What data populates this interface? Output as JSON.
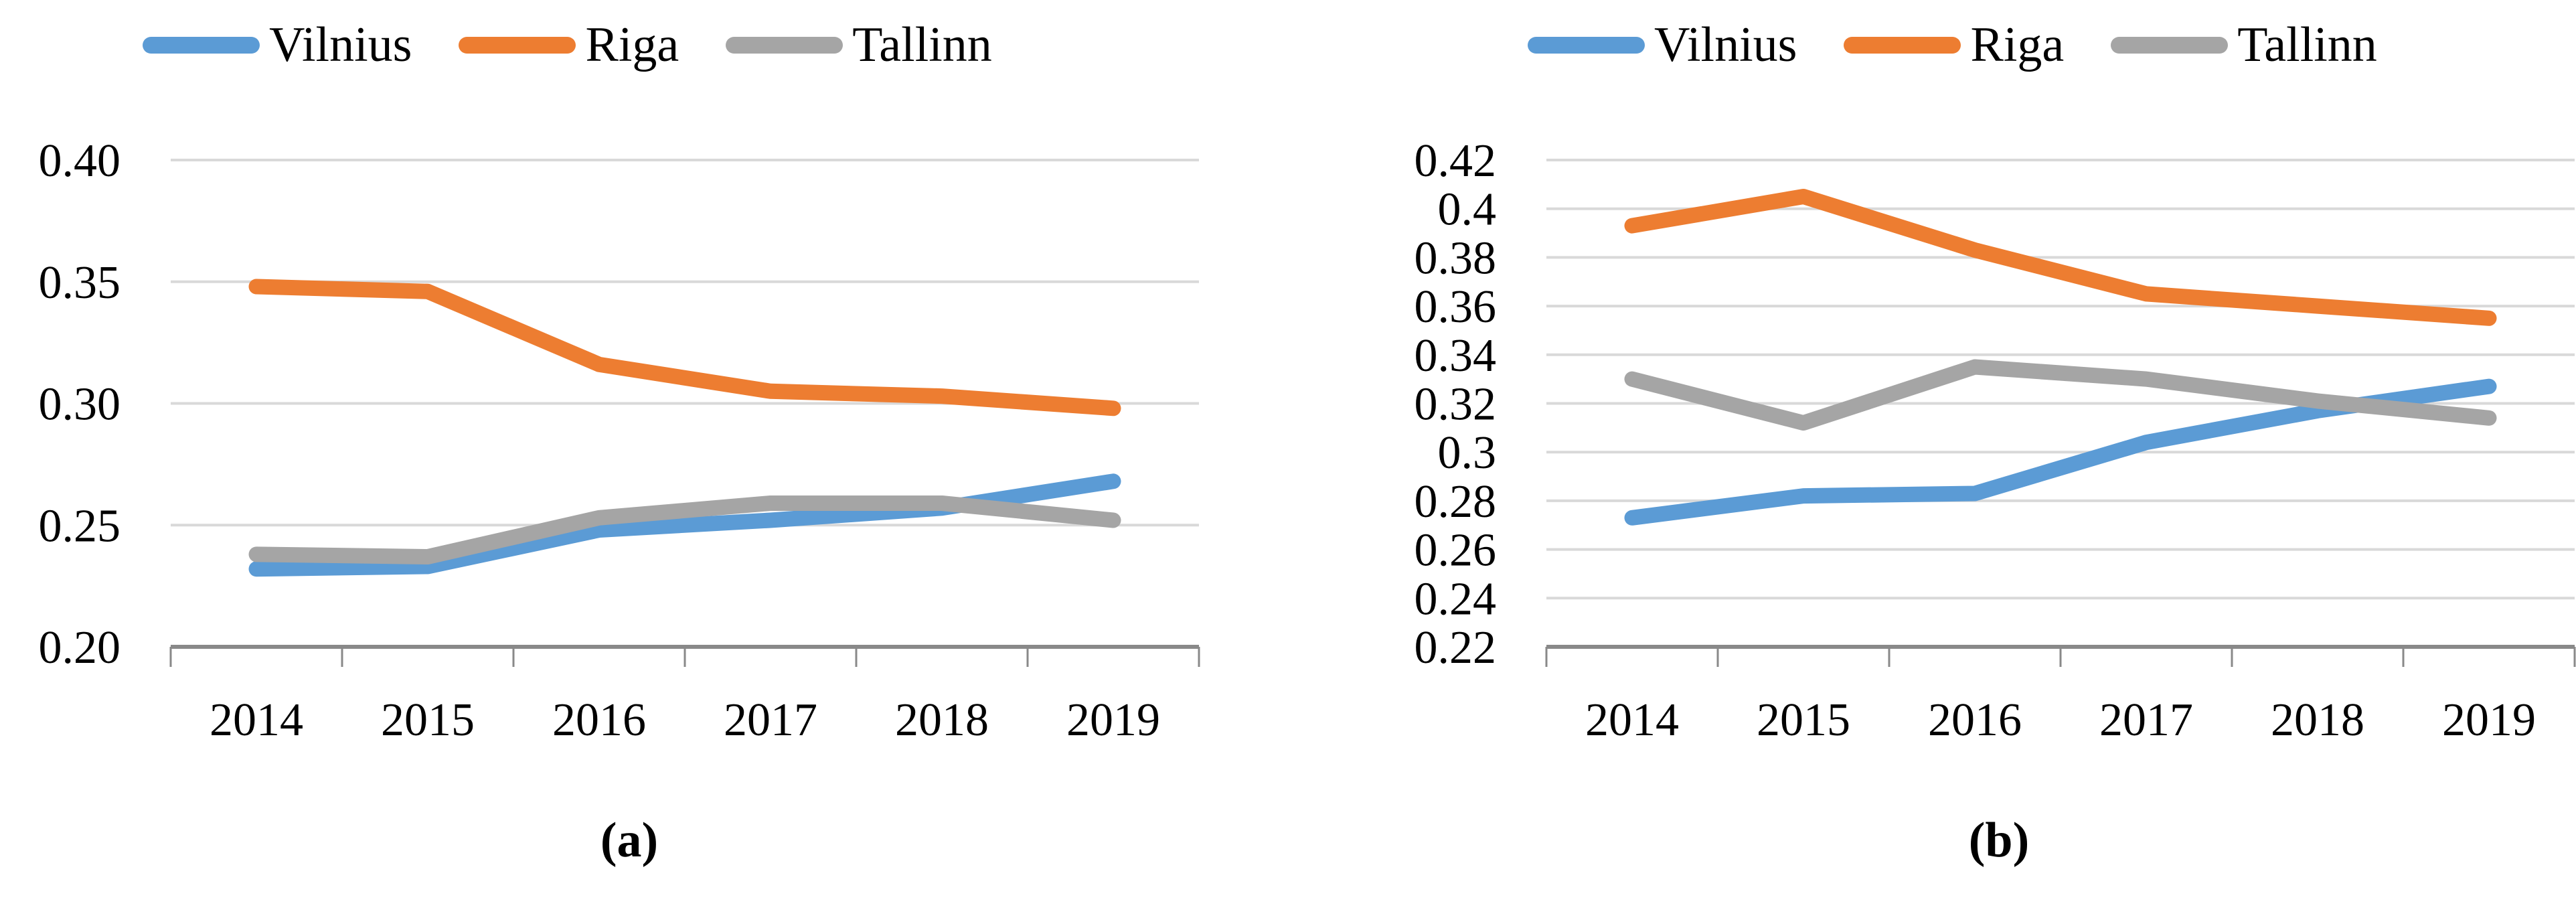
{
  "figure": {
    "colors": {
      "vilnius": "#5B9BD5",
      "riga": "#ED7D31",
      "tallinn": "#A5A5A5",
      "gridline": "#D9D9D9",
      "axis": "#898989",
      "text": "#000000"
    }
  },
  "chart_data": [
    {
      "type": "line",
      "panel": "a",
      "caption": "(a)",
      "title": "",
      "xlabel": "",
      "ylabel": "",
      "grid": true,
      "legend_position": "top",
      "categories": [
        "2014",
        "2015",
        "2016",
        "2017",
        "2018",
        "2019"
      ],
      "ylim": [
        0.2,
        0.4
      ],
      "yticks": [
        "0.40",
        "0.35",
        "0.30",
        "0.25",
        "0.20"
      ],
      "series": [
        {
          "name": "Vilnius",
          "color": "#5B9BD5",
          "values": [
            0.232,
            0.233,
            0.248,
            0.252,
            0.257,
            0.268
          ]
        },
        {
          "name": "Riga",
          "color": "#ED7D31",
          "values": [
            0.348,
            0.346,
            0.316,
            0.305,
            0.303,
            0.298
          ]
        },
        {
          "name": "Tallinn",
          "color": "#A5A5A5",
          "values": [
            0.238,
            0.237,
            0.253,
            0.259,
            0.259,
            0.252
          ]
        }
      ]
    },
    {
      "type": "line",
      "panel": "b",
      "caption": "(b)",
      "title": "",
      "xlabel": "",
      "ylabel": "",
      "grid": true,
      "legend_position": "top",
      "categories": [
        "2014",
        "2015",
        "2016",
        "2017",
        "2018",
        "2019"
      ],
      "ylim": [
        0.22,
        0.42
      ],
      "yticks": [
        "0.42",
        "0.4",
        "0.38",
        "0.36",
        "0.34",
        "0.32",
        "0.3",
        "0.28",
        "0.26",
        "0.24",
        "0.22"
      ],
      "series": [
        {
          "name": "Vilnius",
          "color": "#5B9BD5",
          "values": [
            0.273,
            0.282,
            0.283,
            0.304,
            0.317,
            0.327
          ]
        },
        {
          "name": "Riga",
          "color": "#ED7D31",
          "values": [
            0.393,
            0.405,
            0.383,
            0.365,
            0.36,
            0.355
          ]
        },
        {
          "name": "Tallinn",
          "color": "#A5A5A5",
          "values": [
            0.33,
            0.312,
            0.335,
            0.33,
            0.321,
            0.314
          ]
        }
      ]
    }
  ]
}
